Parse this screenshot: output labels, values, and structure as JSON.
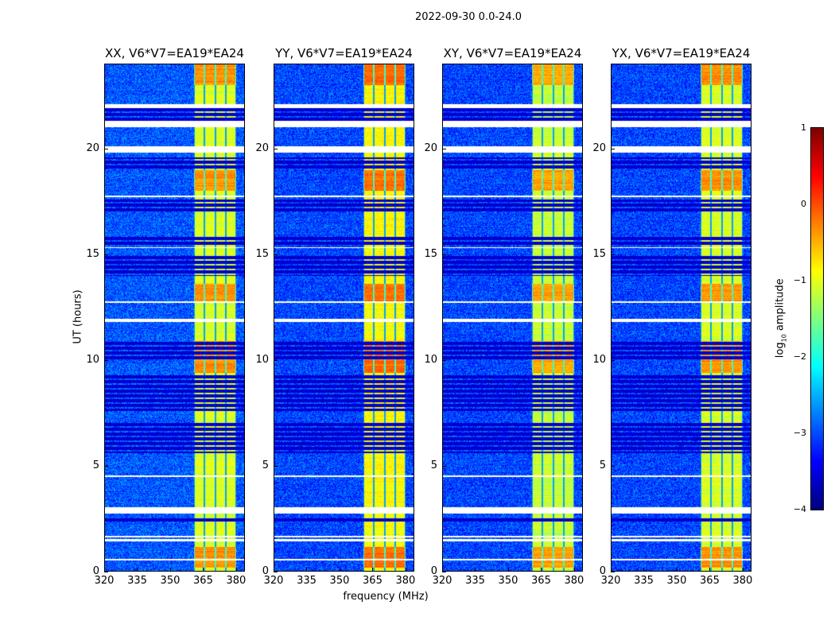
{
  "chart_data": {
    "type": "heatmap",
    "title": "2022-09-30 0.0-24.0",
    "xlabel": "frequency (MHz)",
    "ylabel": "UT (hours)",
    "xlim": [
      320,
      384
    ],
    "ylim": [
      0,
      24
    ],
    "xticks": [
      "320",
      "335",
      "350",
      "365",
      "380"
    ],
    "xtick_values": [
      320,
      335,
      350,
      365,
      380
    ],
    "yticks": [
      "0",
      "5",
      "10",
      "15",
      "20"
    ],
    "ytick_values": [
      0,
      5,
      10,
      15,
      20
    ],
    "colorbar": {
      "label_main": "log",
      "label_sub": "10",
      "label_rest": " amplitude",
      "colormap": "jet",
      "range": [
        -4,
        1
      ],
      "ticks": [
        "1",
        "0",
        "−1",
        "−2",
        "−3",
        "−4"
      ],
      "tick_values": [
        1,
        0,
        -1,
        -2,
        -3,
        -4
      ]
    },
    "panels": [
      {
        "title": "XX, V6*V7=EA19*EA24",
        "band_level": -1.0,
        "background_level": -3.1
      },
      {
        "title": "YY, V6*V7=EA19*EA24",
        "band_level": -0.8,
        "background_level": -3.2
      },
      {
        "title": "XY, V6*V7=EA19*EA24",
        "band_level": -1.1,
        "background_level": -3.2
      },
      {
        "title": "YX, V6*V7=EA19*EA24",
        "band_level": -1.0,
        "background_level": -3.2
      }
    ],
    "band_mhz": [
      360.5,
      380
    ],
    "subband_edges_mhz": [
      360.5,
      365.5,
      370.5,
      375,
      380
    ],
    "hot_hours": [
      [
        12.8,
        13.6
      ],
      [
        18.0,
        19.0
      ],
      [
        9.4,
        10.9
      ],
      [
        0.2,
        1.2
      ],
      [
        23.0,
        24.0
      ]
    ],
    "flagged_hours_white": [
      [
        21.9,
        22.1
      ],
      [
        21.0,
        21.3
      ],
      [
        19.8,
        20.1
      ],
      [
        11.8,
        11.95
      ],
      [
        2.75,
        3.05
      ],
      [
        1.45,
        1.55
      ],
      [
        1.65,
        1.72
      ],
      [
        0.55,
        0.62
      ],
      [
        4.5,
        4.55
      ],
      [
        12.7,
        12.8
      ],
      [
        15.3,
        15.35
      ],
      [
        17.7,
        17.78
      ]
    ],
    "flagged_hours_dark": [
      [
        7.6,
        9.3
      ],
      [
        5.6,
        7.1
      ],
      [
        10.0,
        10.9
      ],
      [
        14.0,
        15.0
      ],
      [
        17.0,
        17.6
      ],
      [
        19.0,
        19.6
      ],
      [
        21.3,
        21.9
      ],
      [
        2.3,
        2.6
      ],
      [
        15.4,
        15.9
      ]
    ]
  }
}
